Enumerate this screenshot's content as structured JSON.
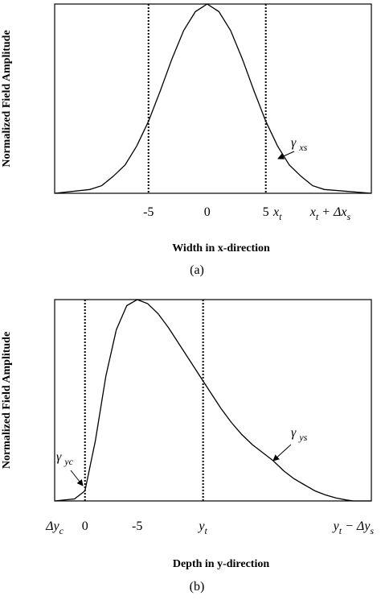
{
  "chart_data": [
    {
      "type": "line",
      "x_label": "Width in x-direction",
      "y_label": "Normalized Field Amplitude",
      "caption": "(a)",
      "xlim": [
        -13,
        14
      ],
      "ylim": [
        0,
        1
      ],
      "xticks": [
        -5,
        0,
        5,
        {
          "value": 6,
          "label": [
            "x",
            "t"
          ]
        },
        {
          "value": 10.5,
          "label": [
            "x",
            "t",
            " + Δx",
            "s"
          ]
        }
      ],
      "reference_lines": [
        -5,
        5
      ],
      "series": [
        {
          "color": "#000000",
          "x": [
            -13,
            -10,
            -9,
            -8,
            -7,
            -6,
            -5,
            -4,
            -3,
            -2,
            -1,
            0,
            1,
            2,
            3,
            4,
            5,
            6,
            7,
            8,
            9,
            10,
            14
          ],
          "values": [
            0,
            0.02,
            0.04,
            0.09,
            0.15,
            0.25,
            0.38,
            0.54,
            0.71,
            0.86,
            0.96,
            1,
            0.96,
            0.86,
            0.71,
            0.54,
            0.38,
            0.25,
            0.15,
            0.09,
            0.04,
            0.02,
            0
          ]
        }
      ],
      "annotations": [
        {
          "label": [
            "γ ",
            "xs"
          ]
        }
      ]
    },
    {
      "type": "line",
      "x_label": "Depth in y-direction",
      "y_label": "Normalized Field Amplitude",
      "caption": "(b)",
      "xlim": [
        2.9,
        -27.4
      ],
      "ylim": [
        0,
        1
      ],
      "xticks": [
        {
          "value": 2.9,
          "label": [
            "Δy",
            "c"
          ]
        },
        0,
        -5,
        {
          "value": -11.3,
          "label": [
            "y",
            "t"
          ]
        },
        {
          "value": -25.7,
          "label": [
            "y",
            "t",
            " − Δy",
            "s"
          ]
        }
      ],
      "reference_lines": [
        0,
        -11.3
      ],
      "series": [
        {
          "color": "#000000",
          "x": [
            2.9,
            1,
            0,
            -1,
            -2,
            -3,
            -4,
            -5,
            -6,
            -7,
            -8,
            -9,
            -10,
            -11,
            -12,
            -13,
            -14,
            -15,
            -16,
            -17,
            -18,
            -19,
            -20,
            -21,
            -22,
            -23,
            -24,
            -25,
            -25.7,
            -27.4
          ],
          "values": [
            0,
            0.01,
            0.05,
            0.3,
            0.62,
            0.85,
            0.97,
            1,
            0.98,
            0.93,
            0.86,
            0.78,
            0.7,
            0.62,
            0.54,
            0.46,
            0.39,
            0.33,
            0.28,
            0.24,
            0.2,
            0.15,
            0.11,
            0.08,
            0.05,
            0.03,
            0.015,
            0.005,
            0,
            0
          ]
        }
      ],
      "annotations": [
        {
          "label": [
            "γ ",
            "yc"
          ]
        },
        {
          "label": [
            "γ ",
            "ys"
          ]
        }
      ]
    }
  ]
}
